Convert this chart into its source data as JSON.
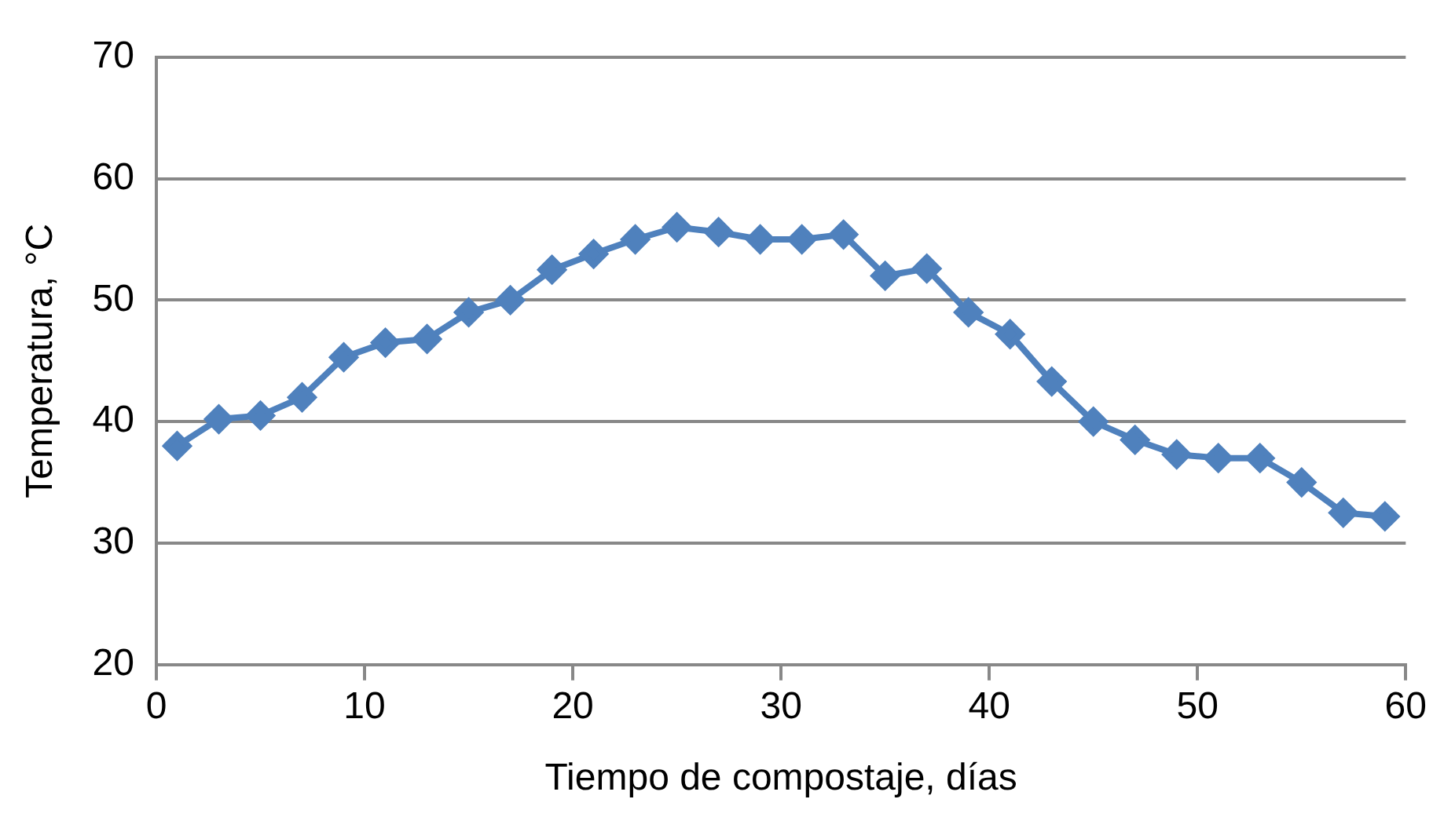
{
  "chart_data": {
    "type": "line",
    "xlabel": "Tiempo de compostaje, días",
    "ylabel": "Temperatura, °C",
    "x": [
      1,
      3,
      5,
      7,
      9,
      11,
      13,
      15,
      17,
      19,
      21,
      23,
      25,
      27,
      29,
      31,
      33,
      35,
      37,
      39,
      41,
      43,
      45,
      47,
      49,
      51,
      53,
      55,
      57,
      59
    ],
    "series": [
      {
        "color": "#4f81bd",
        "values": [
          38,
          40.2,
          40.5,
          42,
          45.3,
          46.5,
          46.8,
          49,
          50,
          52.5,
          53.8,
          55,
          56,
          55.6,
          55,
          55,
          55.4,
          52,
          52.6,
          49,
          47.2,
          43.3,
          40,
          38.5,
          37.3,
          37,
          37,
          35,
          32.5,
          32.2
        ]
      }
    ],
    "xlim": [
      0,
      60
    ],
    "xticks": [
      0,
      10,
      20,
      30,
      40,
      50,
      60
    ],
    "ylim": [
      20,
      70
    ],
    "yticks": [
      20,
      30,
      40,
      50,
      60,
      70
    ],
    "grid": "y",
    "legend": false,
    "marker": "diamond",
    "line_style": "solid"
  }
}
